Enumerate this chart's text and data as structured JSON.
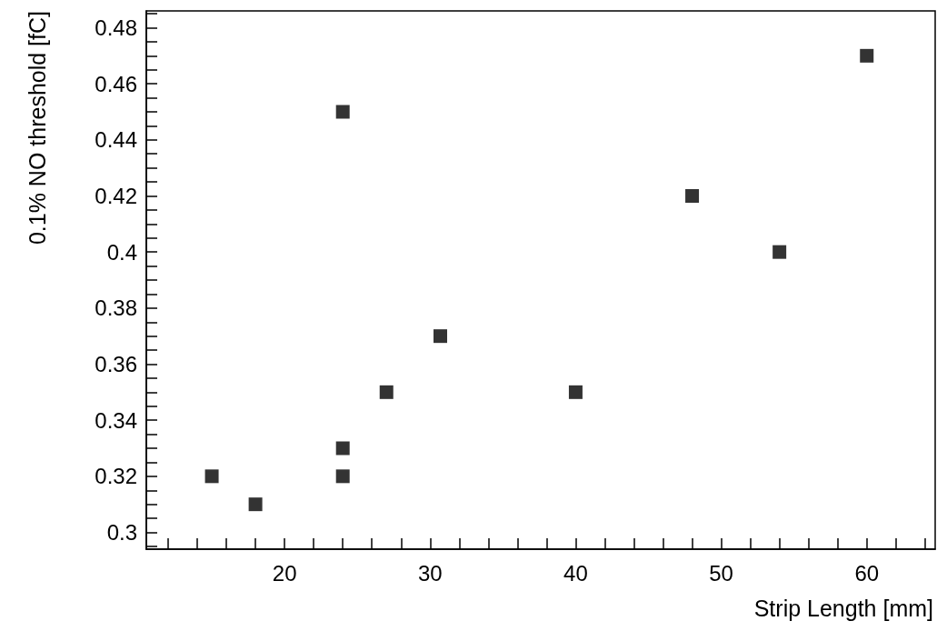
{
  "chart_data": {
    "type": "scatter",
    "xlabel": "Strip Length [mm]",
    "ylabel": "0.1% NO threshold [fC]",
    "x": [
      15,
      18,
      24,
      24,
      24,
      27,
      30.7,
      40,
      48,
      54,
      60
    ],
    "series": [
      {
        "color": "#000000",
        "values": [
          0.32,
          0.31,
          0.45,
          0.33,
          0.32,
          0.35,
          0.37,
          0.35,
          0.42,
          0.4,
          0.47
        ]
      }
    ],
    "marker": "square",
    "xlim": [
      10.5,
      64.7
    ],
    "ylim": [
      0.294,
      0.486
    ],
    "xticks": [
      {
        "value": 12,
        "label": null
      },
      {
        "value": 14,
        "label": null
      },
      {
        "value": 16,
        "label": null
      },
      {
        "value": 18,
        "label": null
      },
      20,
      {
        "value": 22,
        "label": null
      },
      {
        "value": 24,
        "label": null
      },
      {
        "value": 26,
        "label": null
      },
      {
        "value": 28,
        "label": null
      },
      30,
      {
        "value": 32,
        "label": null
      },
      {
        "value": 34,
        "label": null
      },
      {
        "value": 36,
        "label": null
      },
      {
        "value": 38,
        "label": null
      },
      40,
      {
        "value": 42,
        "label": null
      },
      {
        "value": 44,
        "label": null
      },
      {
        "value": 46,
        "label": null
      },
      {
        "value": 48,
        "label": null
      },
      50,
      {
        "value": 52,
        "label": null
      },
      {
        "value": 54,
        "label": null
      },
      {
        "value": 56,
        "label": null
      },
      {
        "value": 58,
        "label": null
      },
      60,
      {
        "value": 62,
        "label": null
      },
      {
        "value": 64,
        "label": null
      }
    ],
    "yticks": [
      {
        "value": 0.295,
        "label": null
      },
      0.3,
      {
        "value": 0.305,
        "label": null
      },
      {
        "value": 0.31,
        "label": null
      },
      {
        "value": 0.315,
        "label": null
      },
      0.32,
      {
        "value": 0.325,
        "label": null
      },
      {
        "value": 0.33,
        "label": null
      },
      {
        "value": 0.335,
        "label": null
      },
      0.34,
      {
        "value": 0.345,
        "label": null
      },
      {
        "value": 0.35,
        "label": null
      },
      {
        "value": 0.355,
        "label": null
      },
      0.36,
      {
        "value": 0.365,
        "label": null
      },
      {
        "value": 0.37,
        "label": null
      },
      {
        "value": 0.375,
        "label": null
      },
      0.38,
      {
        "value": 0.385,
        "label": null
      },
      {
        "value": 0.39,
        "label": null
      },
      {
        "value": 0.395,
        "label": null
      },
      0.4,
      {
        "value": 0.405,
        "label": null
      },
      {
        "value": 0.41,
        "label": null
      },
      {
        "value": 0.415,
        "label": null
      },
      0.42,
      {
        "value": 0.425,
        "label": null
      },
      {
        "value": 0.43,
        "label": null
      },
      {
        "value": 0.435,
        "label": null
      },
      0.44,
      {
        "value": 0.445,
        "label": null
      },
      {
        "value": 0.45,
        "label": null
      },
      {
        "value": 0.455,
        "label": null
      },
      0.46,
      {
        "value": 0.465,
        "label": null
      },
      {
        "value": 0.47,
        "label": null
      },
      {
        "value": 0.475,
        "label": null
      },
      0.48,
      {
        "value": 0.485,
        "label": null
      }
    ]
  }
}
